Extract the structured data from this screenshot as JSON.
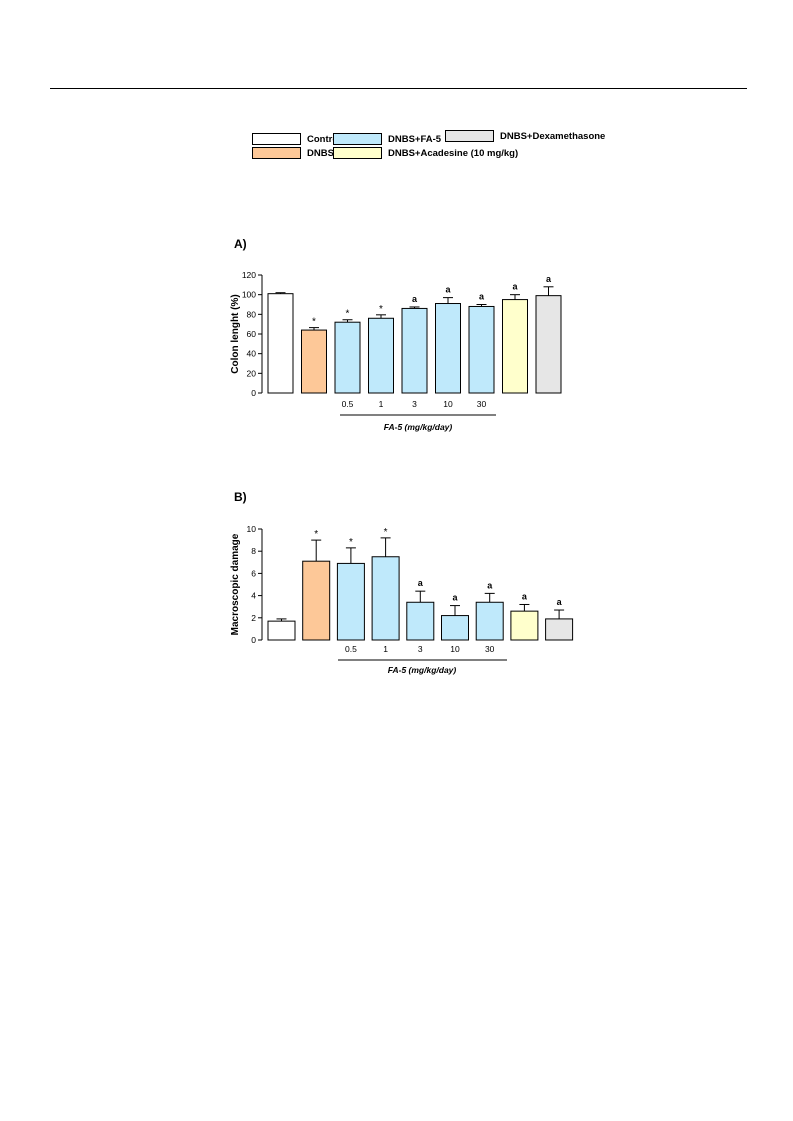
{
  "legend": [
    {
      "label": "Control",
      "color": "#ffffff"
    },
    {
      "label": "DNBS",
      "color": "#fdc898"
    },
    {
      "label": "DNBS+FA-5",
      "color": "#bfe9fb"
    },
    {
      "label": "DNBS+Acadesine (10 mg/kg)",
      "color": "#ffffcc"
    },
    {
      "label": "DNBS+Dexamethasone",
      "color": "#e6e6e6"
    }
  ],
  "chart_data": [
    {
      "type": "bar",
      "panel_label": "A)",
      "ylabel": "Colon lenght (%)",
      "ylim": [
        0,
        120
      ],
      "yticks": [
        0,
        20,
        40,
        60,
        80,
        100,
        120
      ],
      "grid": false,
      "group_label": "FA-5 (mg/kg/day)",
      "bars": [
        {
          "group": "Control",
          "dose": "",
          "value": 101,
          "error": 1,
          "annotation": ""
        },
        {
          "group": "DNBS",
          "dose": "",
          "value": 64,
          "error": 2.5,
          "annotation": "*"
        },
        {
          "group": "DNBS+FA-5",
          "dose": "0.5",
          "value": 72,
          "error": 2.5,
          "annotation": "*"
        },
        {
          "group": "DNBS+FA-5",
          "dose": "1",
          "value": 76,
          "error": 3.5,
          "annotation": "*"
        },
        {
          "group": "DNBS+FA-5",
          "dose": "3",
          "value": 86,
          "error": 1.5,
          "annotation": "a"
        },
        {
          "group": "DNBS+FA-5",
          "dose": "10",
          "value": 91,
          "error": 6,
          "annotation": "a"
        },
        {
          "group": "DNBS+FA-5",
          "dose": "30",
          "value": 88,
          "error": 2,
          "annotation": "a"
        },
        {
          "group": "DNBS+Acadesine (10 mg/kg)",
          "dose": "",
          "value": 95,
          "error": 5,
          "annotation": "a"
        },
        {
          "group": "DNBS+Dexamethasone",
          "dose": "",
          "value": 99,
          "error": 9,
          "annotation": "a"
        }
      ]
    },
    {
      "type": "bar",
      "panel_label": "B)",
      "ylabel": "Macroscopic damage",
      "ylim": [
        0,
        10
      ],
      "yticks": [
        0,
        2,
        4,
        6,
        8,
        10
      ],
      "grid": false,
      "group_label": "FA-5 (mg/kg/day)",
      "bars": [
        {
          "group": "Control",
          "dose": "",
          "value": 1.7,
          "error": 0.2,
          "annotation": ""
        },
        {
          "group": "DNBS",
          "dose": "",
          "value": 7.1,
          "error": 1.9,
          "annotation": "*"
        },
        {
          "group": "DNBS+FA-5",
          "dose": "0.5",
          "value": 6.9,
          "error": 1.4,
          "annotation": "*"
        },
        {
          "group": "DNBS+FA-5",
          "dose": "1",
          "value": 7.5,
          "error": 1.7,
          "annotation": "*"
        },
        {
          "group": "DNBS+FA-5",
          "dose": "3",
          "value": 3.4,
          "error": 1.0,
          "annotation": "a"
        },
        {
          "group": "DNBS+FA-5",
          "dose": "10",
          "value": 2.2,
          "error": 0.9,
          "annotation": "a"
        },
        {
          "group": "DNBS+FA-5",
          "dose": "30",
          "value": 3.4,
          "error": 0.8,
          "annotation": "a"
        },
        {
          "group": "DNBS+Acadesine (10 mg/kg)",
          "dose": "",
          "value": 2.6,
          "error": 0.6,
          "annotation": "a"
        },
        {
          "group": "DNBS+Dexamethasone",
          "dose": "",
          "value": 1.9,
          "error": 0.8,
          "annotation": "a"
        }
      ]
    }
  ]
}
